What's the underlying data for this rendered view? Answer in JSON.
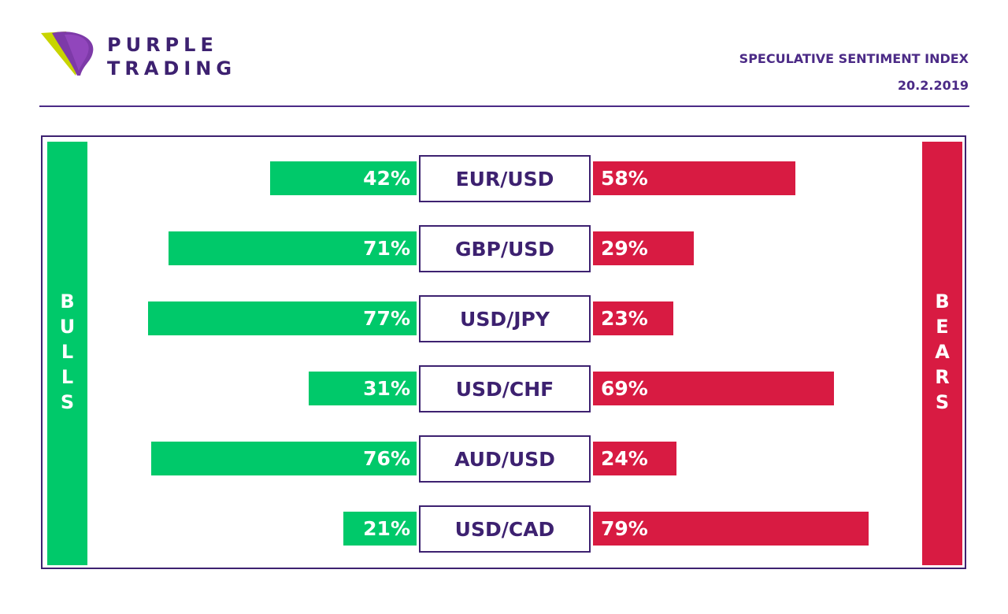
{
  "brand": {
    "name_line1": "PURPLE",
    "name_line2": "TRADING"
  },
  "header": {
    "title": "SPECULATIVE SENTIMENT INDEX",
    "date": "20.2.2019"
  },
  "colors": {
    "bulls": "#00c96a",
    "bears": "#d81b42",
    "purple": "#3d2170"
  },
  "chart_data": {
    "type": "bar",
    "title": "SPECULATIVE SENTIMENT INDEX",
    "left_label": "BULLS",
    "right_label": "BEARS",
    "categories": [
      "EUR/USD",
      "GBP/USD",
      "USD/JPY",
      "USD/CHF",
      "AUD/USD",
      "USD/CAD"
    ],
    "series": [
      {
        "name": "BULLS",
        "values": [
          42,
          71,
          77,
          31,
          76,
          21
        ]
      },
      {
        "name": "BEARS",
        "values": [
          58,
          29,
          23,
          69,
          24,
          79
        ]
      }
    ],
    "unit": "%"
  }
}
